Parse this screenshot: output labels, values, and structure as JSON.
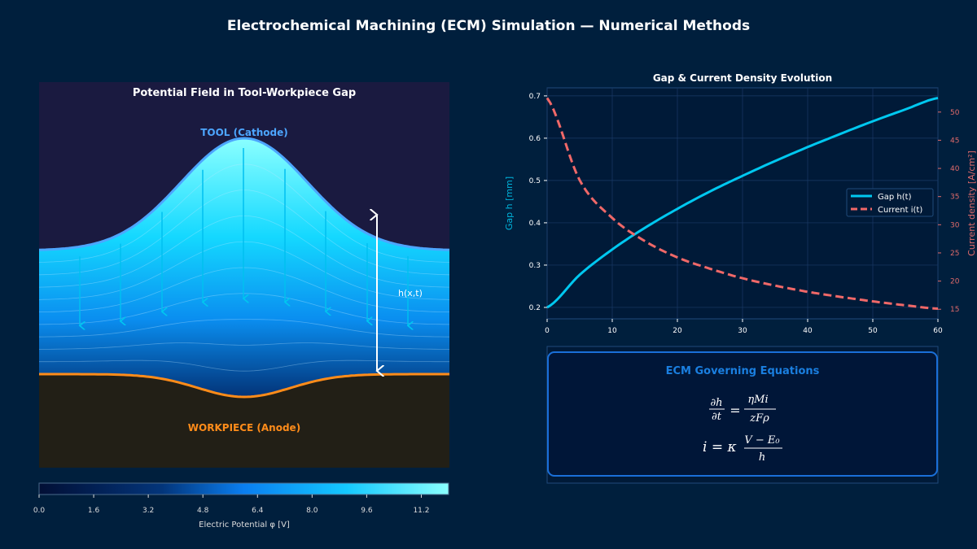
{
  "title": "Electrochemical Machining (ECM) Simulation — Numerical Methods",
  "colors": {
    "background": "#001f3d",
    "gap": "#00c8f0",
    "current": "#f06868",
    "tool": "#4da6ff",
    "workpiece": "#ff8c1a",
    "accent": "#1a7fe0"
  },
  "chart_data": [
    {
      "type": "heatmap",
      "title": "Potential Field in Tool-Workpiece Gap",
      "tool_label": "TOOL (Cathode)",
      "workpiece_label": "WORKPIECE (Anode)",
      "gap_label": "h(x,t)",
      "colorbar": {
        "label": "Electric Potential  φ [V]",
        "range": [
          0,
          12
        ],
        "ticks": [
          "0.0",
          "1.6",
          "3.2",
          "4.8",
          "6.4",
          "8.0",
          "9.6",
          "11.2"
        ]
      }
    },
    {
      "type": "line",
      "title": "Gap & Current Density Evolution",
      "xlabel": "",
      "ylabel": "Gap h [mm]",
      "ylabel_right": "Current density [A/cm²]",
      "xlim": [
        0,
        60
      ],
      "ylim": [
        0.173,
        0.719
      ],
      "ylim_right": [
        13.3,
        54.3
      ],
      "xticks": [
        "0",
        "10",
        "20",
        "30",
        "40",
        "50",
        "60"
      ],
      "yticks": [
        "0.2",
        "0.3",
        "0.4",
        "0.5",
        "0.6",
        "0.7"
      ],
      "yticks_right": [
        "15",
        "20",
        "25",
        "30",
        "35",
        "40",
        "45",
        "50"
      ],
      "grid": true,
      "legend": "center-right",
      "x": [
        0,
        5,
        10,
        15,
        20,
        25,
        30,
        35,
        40,
        45,
        50,
        55,
        60
      ],
      "series": [
        {
          "name": "Gap h(t)",
          "axis": "left",
          "values": [
            0.2,
            0.277,
            0.337,
            0.388,
            0.433,
            0.474,
            0.511,
            0.546,
            0.579,
            0.61,
            0.64,
            0.668,
            0.695
          ]
        },
        {
          "name": "Current i(t)",
          "axis": "right",
          "values": [
            52.5,
            37.9,
            31.2,
            27.1,
            24.2,
            22.2,
            20.5,
            19.2,
            18.1,
            17.2,
            16.4,
            15.7,
            15.1
          ]
        }
      ]
    }
  ],
  "equations": {
    "title": "ECM Governing Equations",
    "eq1_lhs_num": "∂h",
    "eq1_lhs_den": "∂t",
    "eq1_rhs_num": "ηMi",
    "eq1_rhs_den": "zFρ",
    "eq2_lhs": "i = κ",
    "eq2_num": "V − E₀",
    "eq2_den": "h"
  }
}
